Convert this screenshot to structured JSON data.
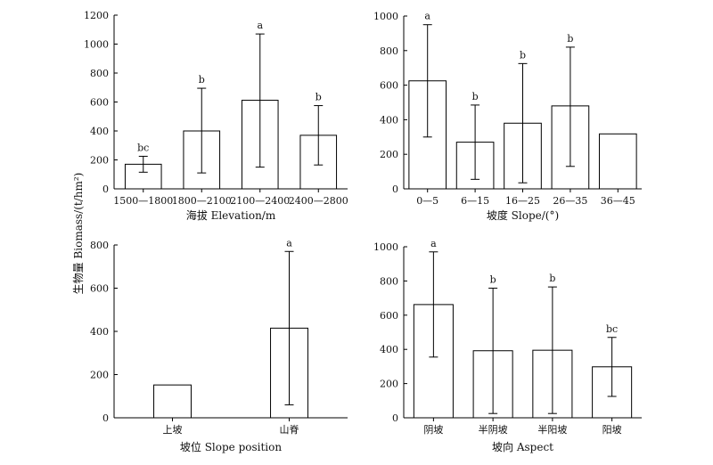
{
  "figure": {
    "ylabel": "生物量 Biomass/(t/hm²)"
  },
  "chart_data": [
    {
      "type": "bar",
      "xlabel": "海拔 Elevation/m",
      "ylim": [
        0,
        1200
      ],
      "yticks": [
        0,
        200,
        400,
        600,
        800,
        1000,
        1200
      ],
      "categories": [
        "1500—1800",
        "1800—2100",
        "2100—2400",
        "2400—2800"
      ],
      "values": [
        170,
        400,
        612,
        370
      ],
      "error_low": [
        115,
        110,
        150,
        165
      ],
      "error_high": [
        225,
        695,
        1070,
        575
      ],
      "letters": [
        "bc",
        "b",
        "a",
        "b"
      ],
      "grid": false
    },
    {
      "type": "bar",
      "xlabel": "坡度 Slope/(°)",
      "ylim": [
        0,
        1000
      ],
      "yticks": [
        0,
        200,
        400,
        600,
        800,
        1000
      ],
      "categories": [
        "0—5",
        "6—15",
        "16—25",
        "26—35",
        "36—45"
      ],
      "values": [
        625,
        270,
        380,
        480,
        318
      ],
      "error_low": [
        300,
        55,
        35,
        130,
        null
      ],
      "error_high": [
        950,
        485,
        725,
        820,
        null
      ],
      "letters": [
        "a",
        "b",
        "b",
        "b",
        ""
      ],
      "grid": false
    },
    {
      "type": "bar",
      "xlabel": "坡位 Slope position",
      "ylim": [
        0,
        800
      ],
      "yticks": [
        0,
        200,
        400,
        600,
        800
      ],
      "categories": [
        "上坡",
        "山脊"
      ],
      "values": [
        152,
        415
      ],
      "error_low": [
        null,
        60
      ],
      "error_high": [
        null,
        770
      ],
      "letters": [
        "",
        "a"
      ],
      "grid": false
    },
    {
      "type": "bar",
      "xlabel": "坡向 Aspect",
      "ylim": [
        0,
        1000
      ],
      "yticks": [
        0,
        200,
        400,
        600,
        800,
        1000
      ],
      "categories": [
        "阴坡",
        "半阴坡",
        "半阳坡",
        "阳坡"
      ],
      "values": [
        662,
        392,
        395,
        298
      ],
      "error_low": [
        355,
        25,
        25,
        125
      ],
      "error_high": [
        970,
        758,
        765,
        470
      ],
      "letters": [
        "a",
        "b",
        "b",
        "bc"
      ],
      "grid": false
    }
  ]
}
